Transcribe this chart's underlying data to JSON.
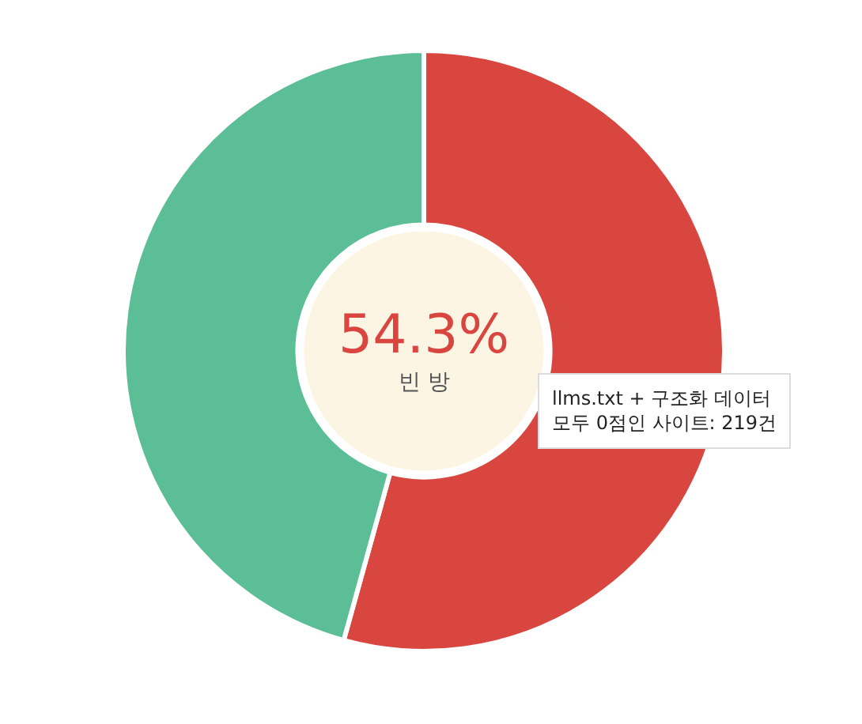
{
  "chart_data": {
    "type": "donut",
    "categories": [
      null,
      null
    ],
    "values": [
      54.3,
      45.7
    ],
    "colors": [
      "#d8463f",
      "#5cbe96"
    ],
    "annotations": [
      "54.3%",
      "빈 방",
      "llms.txt + 구조화 데이터\n모두 0점인 사이트: 219건"
    ]
  }
}
